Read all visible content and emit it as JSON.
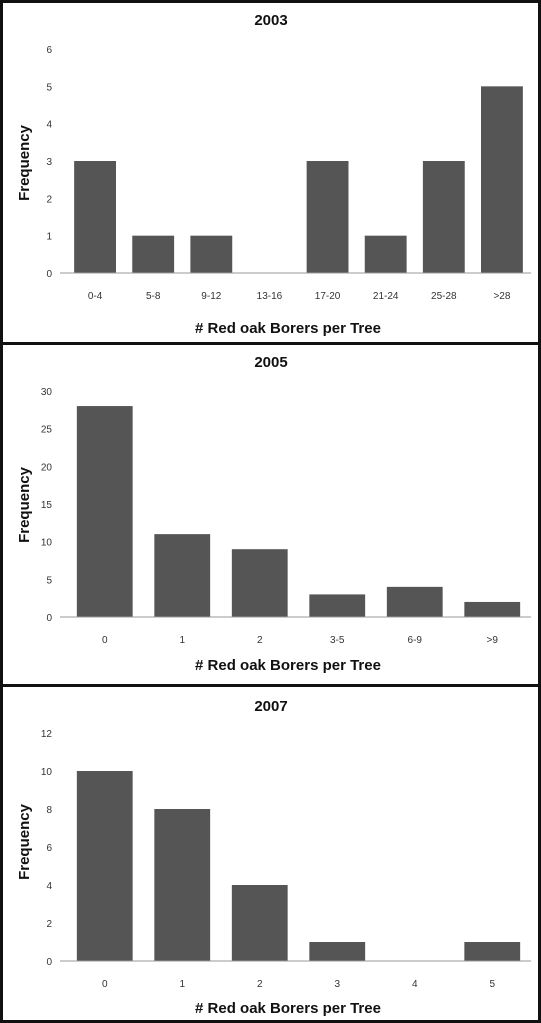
{
  "colors": {
    "bar": "#555555",
    "frame": "#111111",
    "axis": "#999999"
  },
  "chart_data": [
    {
      "type": "bar",
      "title": "2003",
      "xlabel": "# Red oak Borers per Tree",
      "ylabel": "Frequency",
      "ylim": [
        0,
        6
      ],
      "yticks": [
        "0",
        "1",
        "2",
        "3",
        "4",
        "5",
        "6"
      ],
      "categories": [
        "0-4",
        "5-8",
        "9-12",
        "13-16",
        "17-20",
        "21-24",
        "25-28",
        ">28"
      ],
      "values": [
        3,
        1,
        1,
        0,
        3,
        1,
        3,
        5
      ],
      "grid": false,
      "legend": "none"
    },
    {
      "type": "bar",
      "title": "2005",
      "xlabel": "# Red oak Borers per Tree",
      "ylabel": "Frequency",
      "ylim": [
        0,
        30
      ],
      "yticks": [
        "0",
        "5",
        "10",
        "15",
        "20",
        "25",
        "30"
      ],
      "categories": [
        "0",
        "1",
        "2",
        "3-5",
        "6-9",
        ">9"
      ],
      "values": [
        28,
        11,
        9,
        3,
        4,
        2
      ],
      "grid": false,
      "legend": "none"
    },
    {
      "type": "bar",
      "title": "2007",
      "xlabel": "# Red oak Borers per Tree",
      "ylabel": "Frequency",
      "ylim": [
        0,
        12
      ],
      "yticks": [
        "0",
        "2",
        "4",
        "6",
        "8",
        "10",
        "12"
      ],
      "categories": [
        "0",
        "1",
        "2",
        "3",
        "4",
        "5"
      ],
      "values": [
        10,
        8,
        4,
        1,
        0,
        1
      ],
      "grid": false,
      "legend": "none"
    }
  ]
}
